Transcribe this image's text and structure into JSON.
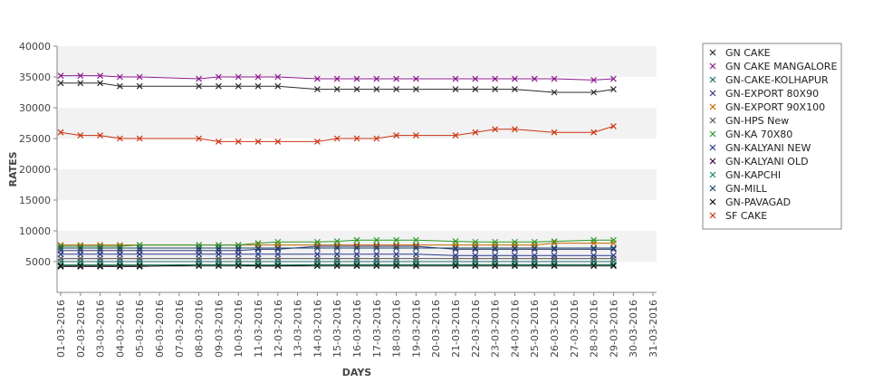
{
  "chart_data": {
    "type": "line",
    "title": "",
    "xlabel": "DAYS",
    "ylabel": "RATES",
    "ylim": [
      0,
      40000
    ],
    "yticks": [
      5000,
      10000,
      15000,
      20000,
      25000,
      30000,
      35000,
      40000
    ],
    "grid": "alternating horizontal bands",
    "legend_position": "right",
    "x": [
      "01-03-2016",
      "02-03-2016",
      "03-03-2016",
      "04-03-2016",
      "05-03-2016",
      "06-03-2016",
      "07-03-2016",
      "08-03-2016",
      "09-03-2016",
      "10-03-2016",
      "11-03-2016",
      "12-03-2016",
      "13-03-2016",
      "14-03-2016",
      "15-03-2016",
      "16-03-2016",
      "17-03-2016",
      "18-03-2016",
      "19-03-2016",
      "20-03-2016",
      "21-03-2016",
      "22-03-2016",
      "23-03-2016",
      "24-03-2016",
      "25-03-2016",
      "26-03-2016",
      "27-03-2016",
      "28-03-2016",
      "29-03-2016",
      "30-03-2016",
      "31-03-2016"
    ],
    "series": [
      {
        "name": "GN CAKE",
        "color": "#2b2b2b",
        "values": [
          34000,
          34000,
          34000,
          33500,
          33500,
          null,
          null,
          33500,
          33500,
          33500,
          33500,
          33500,
          null,
          33000,
          33000,
          33000,
          33000,
          33000,
          33000,
          null,
          33000,
          33000,
          33000,
          33000,
          null,
          32500,
          null,
          32500,
          33000,
          null,
          null
        ]
      },
      {
        "name": "GN CAKE MANGALORE",
        "color": "#8b1a8b",
        "values": [
          35200,
          35200,
          35200,
          35000,
          35000,
          null,
          null,
          34700,
          35000,
          35000,
          35000,
          35000,
          null,
          34700,
          34700,
          34700,
          34700,
          34700,
          34700,
          null,
          34700,
          34700,
          34700,
          34700,
          34700,
          34700,
          null,
          34500,
          34700,
          null,
          null
        ]
      },
      {
        "name": "GN-CAKE-KOLHAPUR",
        "color": "#1f6e6e",
        "values": [
          5000,
          5000,
          5000,
          5000,
          5000,
          null,
          null,
          5000,
          5000,
          5000,
          5000,
          5000,
          null,
          5000,
          5000,
          5000,
          5000,
          5000,
          5000,
          null,
          5000,
          5000,
          5000,
          5000,
          5000,
          5000,
          null,
          5000,
          5000,
          null,
          null
        ]
      },
      {
        "name": "GN-EXPORT 80X90",
        "color": "#3a3a7a",
        "values": [
          6800,
          6800,
          6800,
          6800,
          6800,
          null,
          null,
          6800,
          6800,
          6800,
          7000,
          7000,
          null,
          7500,
          7500,
          7500,
          7500,
          7500,
          7500,
          null,
          7000,
          7000,
          7000,
          7000,
          7000,
          7000,
          null,
          7000,
          7000,
          null,
          null
        ]
      },
      {
        "name": "GN-EXPORT 90X100",
        "color": "#c86a00",
        "values": [
          7700,
          7700,
          7700,
          7700,
          7700,
          null,
          null,
          7700,
          7700,
          7700,
          7700,
          7700,
          null,
          7700,
          7700,
          7700,
          7700,
          7700,
          7700,
          null,
          7700,
          7700,
          7700,
          7700,
          7700,
          8000,
          null,
          8000,
          8000,
          null,
          null
        ]
      },
      {
        "name": "GN-HPS New",
        "color": "#555555",
        "values": [
          5500,
          5500,
          5500,
          5500,
          5500,
          null,
          null,
          5500,
          5500,
          5500,
          5500,
          5500,
          null,
          5500,
          5500,
          5500,
          5500,
          5500,
          5500,
          null,
          5500,
          5500,
          5500,
          5500,
          5500,
          5500,
          null,
          5500,
          5500,
          null,
          null
        ]
      },
      {
        "name": "GN-KA 70X80",
        "color": "#2a9a2a",
        "values": [
          7500,
          7500,
          7500,
          7500,
          7700,
          null,
          null,
          7700,
          7700,
          7700,
          8000,
          8200,
          null,
          8200,
          8300,
          8500,
          8500,
          8500,
          8500,
          null,
          8300,
          8200,
          8200,
          8200,
          8200,
          8300,
          null,
          8500,
          8500,
          null,
          null
        ]
      },
      {
        "name": "GN-KALYANI NEW",
        "color": "#2a3a8a",
        "values": [
          6200,
          6200,
          6200,
          6200,
          6200,
          null,
          null,
          6200,
          6200,
          6200,
          6200,
          6200,
          null,
          6200,
          6200,
          6200,
          6200,
          6200,
          6200,
          null,
          6000,
          6000,
          6000,
          6000,
          6000,
          6000,
          null,
          6000,
          6000,
          null,
          null
        ]
      },
      {
        "name": "GN-KALYANI OLD",
        "color": "#3a0a3a",
        "values": [
          4200,
          4200,
          4200,
          4200,
          4200,
          null,
          null,
          4500,
          4500,
          4500,
          4300,
          4300,
          null,
          4500,
          4500,
          4500,
          4500,
          4500,
          4500,
          null,
          4500,
          4500,
          4500,
          4500,
          4500,
          4500,
          null,
          4500,
          4500,
          null,
          null
        ]
      },
      {
        "name": "GN-KAPCHI",
        "color": "#1a8a5a",
        "values": [
          4500,
          4500,
          4500,
          4500,
          4500,
          null,
          null,
          4500,
          4500,
          4500,
          4500,
          4500,
          null,
          4500,
          4500,
          4500,
          4500,
          4500,
          4500,
          null,
          4500,
          4500,
          4500,
          4500,
          4500,
          4500,
          null,
          4500,
          4500,
          null,
          null
        ]
      },
      {
        "name": "GN-MILL",
        "color": "#1a4a6a",
        "values": [
          7200,
          7200,
          7200,
          7200,
          7200,
          null,
          null,
          7200,
          7200,
          7200,
          7200,
          7200,
          null,
          7200,
          7200,
          7200,
          7200,
          7200,
          7200,
          null,
          7200,
          7200,
          7200,
          7200,
          7200,
          7200,
          null,
          7200,
          7200,
          null,
          null
        ]
      },
      {
        "name": "GN-PAVAGAD",
        "color": "#111111",
        "values": [
          4300,
          4300,
          4300,
          4300,
          4300,
          null,
          null,
          4300,
          4300,
          4300,
          4300,
          4300,
          null,
          4300,
          4300,
          4300,
          4300,
          4300,
          4300,
          null,
          4300,
          4300,
          4300,
          4300,
          4300,
          4300,
          null,
          4300,
          4300,
          null,
          null
        ]
      },
      {
        "name": "SF CAKE",
        "color": "#cc3311",
        "values": [
          26000,
          25500,
          25500,
          25000,
          25000,
          null,
          null,
          25000,
          24500,
          24500,
          24500,
          24500,
          null,
          24500,
          25000,
          25000,
          25000,
          25500,
          25500,
          null,
          25500,
          26000,
          26500,
          26500,
          null,
          26000,
          null,
          26000,
          27000,
          null,
          null
        ]
      }
    ]
  }
}
